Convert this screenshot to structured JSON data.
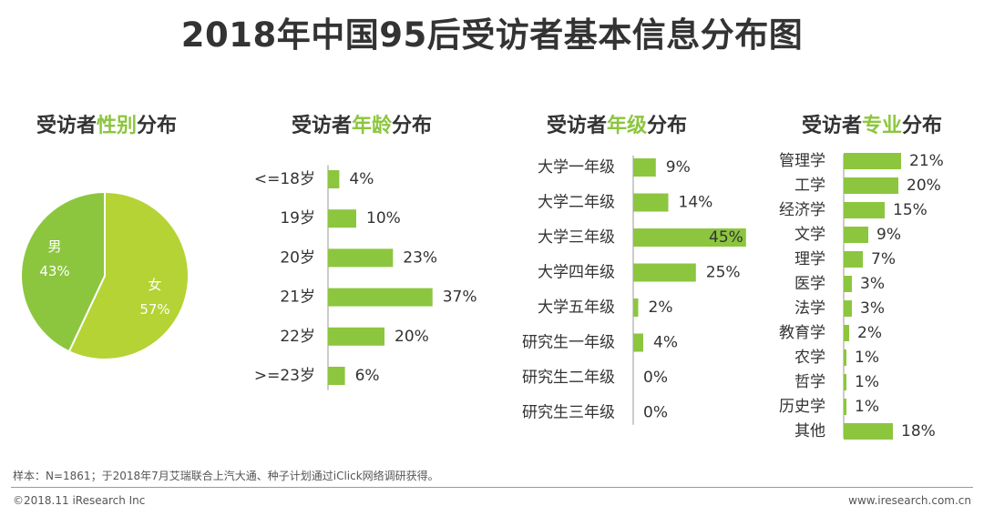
{
  "title": "2018年中国95后受访者基本信息分布图",
  "colors": {
    "bar": "#8cc63f",
    "male": "#8cc63f",
    "female": "#b5d334",
    "highlight": "#8cc63f"
  },
  "subtitles": {
    "gender": {
      "prefix": "受访者",
      "highlight": "性别",
      "suffix": "分布"
    },
    "age": {
      "prefix": "受访者",
      "highlight": "年龄",
      "suffix": "分布"
    },
    "grade": {
      "prefix": "受访者",
      "highlight": "年级",
      "suffix": "分布"
    },
    "major": {
      "prefix": "受访者",
      "highlight": "专业",
      "suffix": "分布"
    }
  },
  "chart_data": [
    {
      "id": "gender",
      "type": "pie",
      "title": "受访者性别分布",
      "slices": [
        {
          "name": "男",
          "value": 43,
          "label": "43%"
        },
        {
          "name": "女",
          "value": 57,
          "label": "57%"
        }
      ]
    },
    {
      "id": "age",
      "type": "bar",
      "orientation": "horizontal",
      "title": "受访者年龄分布",
      "categories": [
        "<=18岁",
        "19岁",
        "20岁",
        "21岁",
        "22岁",
        ">=23岁"
      ],
      "values": [
        4,
        10,
        23,
        37,
        20,
        6
      ],
      "labels": [
        "4%",
        "10%",
        "23%",
        "37%",
        "20%",
        "6%"
      ],
      "xlim": [
        0,
        45
      ]
    },
    {
      "id": "grade",
      "type": "bar",
      "orientation": "horizontal",
      "title": "受访者年级分布",
      "categories": [
        "大学一年级",
        "大学二年级",
        "大学三年级",
        "大学四年级",
        "大学五年级",
        "研究生一年级",
        "研究生二年级",
        "研究生三年级"
      ],
      "values": [
        9,
        14,
        45,
        25,
        2,
        4,
        0,
        0
      ],
      "labels": [
        "9%",
        "14%",
        "45%",
        "25%",
        "2%",
        "4%",
        "0%",
        "0%"
      ],
      "xlim": [
        0,
        50
      ]
    },
    {
      "id": "major",
      "type": "bar",
      "orientation": "horizontal",
      "title": "受访者专业分布",
      "categories": [
        "管理学",
        "工学",
        "经济学",
        "文学",
        "理学",
        "医学",
        "法学",
        "教育学",
        "农学",
        "哲学",
        "历史学",
        "其他"
      ],
      "values": [
        21,
        20,
        15,
        9,
        7,
        3,
        3,
        2,
        1,
        1,
        1,
        18
      ],
      "labels": [
        "21%",
        "20%",
        "15%",
        "9%",
        "7%",
        "3%",
        "3%",
        "2%",
        "1%",
        "1%",
        "1%",
        "18%"
      ],
      "xlim": [
        0,
        25
      ]
    }
  ],
  "footer": {
    "note": "样本：N=1861；于2018年7月艾瑞联合上汽大通、种子计划通过iClick网络调研获得。",
    "copyright": "©2018.11 iResearch Inc",
    "website": "www.iresearch.com.cn"
  }
}
